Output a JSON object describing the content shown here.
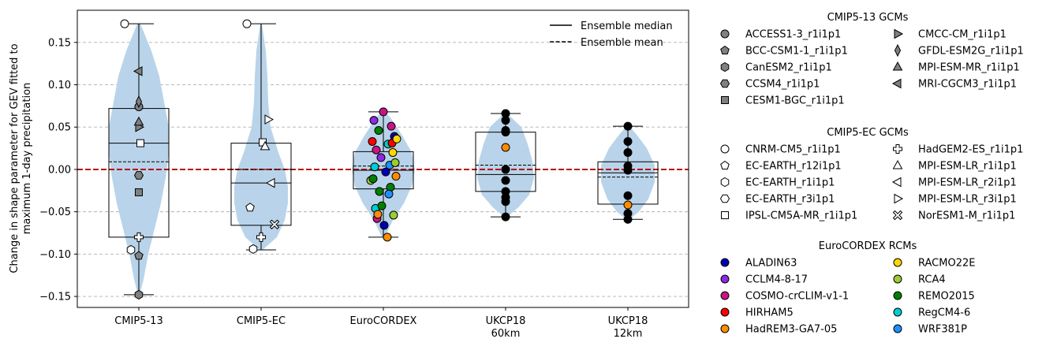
{
  "chart_data": {
    "type": "violin-box-scatter",
    "ylabel": "Change in shape parameter for GEV fitted to maximum 1-day precipitation",
    "ylim": [
      -0.163,
      0.188
    ],
    "yticks": [
      -0.15,
      -0.1,
      -0.05,
      0.0,
      0.05,
      0.1,
      0.15
    ],
    "ytick_labels": [
      "−0.15",
      "−0.10",
      "−0.05",
      "0.00",
      "0.05",
      "0.10",
      "0.15"
    ],
    "grid": "horizontal dashed",
    "zero_line_color": "#b30000",
    "violin_color": "#b9d4ea",
    "categories": [
      {
        "label": "CMIP5-13",
        "box": {
          "q1": -0.08,
          "median": 0.031,
          "q3": 0.072,
          "mean": 0.009,
          "whisker_low": -0.148,
          "whisker_high": 0.172
        },
        "violin": [
          [
            -0.15,
            0.005
          ],
          [
            -0.13,
            0.06
          ],
          [
            -0.1,
            0.12
          ],
          [
            -0.07,
            0.2
          ],
          [
            -0.04,
            0.28
          ],
          [
            -0.01,
            0.34
          ],
          [
            0.02,
            0.38
          ],
          [
            0.05,
            0.38
          ],
          [
            0.08,
            0.32
          ],
          [
            0.11,
            0.26
          ],
          [
            0.14,
            0.16
          ],
          [
            0.172,
            0.02
          ]
        ],
        "points": [
          {
            "model": "ACCESS1-3_r1i1p1",
            "y": 0.074
          },
          {
            "model": "BCC-CSM1-1_r1i1p1",
            "y": -0.102
          },
          {
            "model": "CanESM2_r1i1p1",
            "y": -0.148
          },
          {
            "model": "CCSM4_r1i1p1",
            "y": -0.007
          },
          {
            "model": "CESM1-BGC_r1i1p1",
            "y": -0.027
          },
          {
            "model": "CMCC-CM_r1i1p1",
            "y": 0.05
          },
          {
            "model": "GFDL-ESM2G_r1i1p1",
            "y": 0.08
          },
          {
            "model": "MPI-ESM-MR_r1i1p1",
            "y": 0.056
          },
          {
            "model": "MRI-CGCM3_r1i1p1",
            "y": 0.116
          },
          {
            "model": "CNRM-CM5_r1i1p1",
            "y": 0.172
          },
          {
            "model": "EC-EARTH_r1i1p1",
            "y": -0.095
          },
          {
            "model": "IPSL-CM5A-MR_r1i1p1",
            "y": 0.031
          },
          {
            "model": "HadGEM2-ES_r1i1p1",
            "y": -0.08
          }
        ]
      },
      {
        "label": "CMIP5-EC",
        "box": {
          "q1": -0.066,
          "median": -0.016,
          "q3": 0.031,
          "mean": 0.0,
          "whisker_low": -0.095,
          "whisker_high": 0.172
        },
        "violin": [
          [
            -0.095,
            0.02
          ],
          [
            -0.08,
            0.2
          ],
          [
            -0.06,
            0.3
          ],
          [
            -0.04,
            0.34
          ],
          [
            -0.02,
            0.34
          ],
          [
            0.0,
            0.3
          ],
          [
            0.02,
            0.22
          ],
          [
            0.05,
            0.12
          ],
          [
            0.08,
            0.09
          ],
          [
            0.11,
            0.08
          ],
          [
            0.14,
            0.06
          ],
          [
            0.172,
            0.01
          ]
        ],
        "points": [
          {
            "model": "CNRM-CM5_r1i1p1",
            "y": 0.172
          },
          {
            "model": "EC-EARTH_r12i1p1",
            "y": -0.045
          },
          {
            "model": "EC-EARTH_r1i1p1",
            "y": -0.094
          },
          {
            "model": "IPSL-CM5A-MR_r1i1p1",
            "y": 0.032
          },
          {
            "model": "HadGEM2-ES_r1i1p1",
            "y": -0.08
          },
          {
            "model": "MPI-ESM-LR_r1i1p1",
            "y": 0.027
          },
          {
            "model": "MPI-ESM-LR_r2i1p1",
            "y": -0.016
          },
          {
            "model": "MPI-ESM-LR_r3i1p1",
            "y": 0.059
          },
          {
            "model": "NorESM1-M_r1i1p1",
            "y": -0.065
          }
        ]
      },
      {
        "label": "EuroCORDEX",
        "box": {
          "q1": -0.023,
          "median": -0.001,
          "q3": 0.021,
          "mean": 0.004,
          "whisker_low": -0.08,
          "whisker_high": 0.068
        },
        "violin": [
          [
            -0.08,
            0.02
          ],
          [
            -0.06,
            0.12
          ],
          [
            -0.04,
            0.26
          ],
          [
            -0.02,
            0.36
          ],
          [
            0.0,
            0.4
          ],
          [
            0.02,
            0.36
          ],
          [
            0.04,
            0.24
          ],
          [
            0.06,
            0.1
          ],
          [
            0.068,
            0.02
          ]
        ],
        "points": [
          {
            "model": "COSMO-crCLIM-v1-1",
            "y": 0.068
          },
          {
            "model": "CCLM4-8-17",
            "y": 0.058
          },
          {
            "model": "COSMO-crCLIM-v1-1",
            "y": 0.051
          },
          {
            "model": "REMO2015",
            "y": 0.046
          },
          {
            "model": "ALADIN63",
            "y": 0.039
          },
          {
            "model": "HIRHAM5",
            "y": 0.033
          },
          {
            "model": "RegCM4-6",
            "y": 0.03
          },
          {
            "model": "COSMO-crCLIM-v1-1",
            "y": 0.023
          },
          {
            "model": "RACMO22E",
            "y": 0.02
          },
          {
            "model": "CCLM4-8-17",
            "y": 0.014
          },
          {
            "model": "WRF381P",
            "y": 0.005
          },
          {
            "model": "RegCM4-6",
            "y": 0.003
          },
          {
            "model": "ALADIN63",
            "y": -0.003
          },
          {
            "model": "HadREM3-GA7-05",
            "y": -0.008
          },
          {
            "model": "RCA4",
            "y": -0.013
          },
          {
            "model": "REMO2015",
            "y": -0.021
          },
          {
            "model": "REMO2015",
            "y": -0.026
          },
          {
            "model": "RCA4",
            "y": -0.054
          },
          {
            "model": "COSMO-crCLIM-v1-1",
            "y": -0.058
          },
          {
            "model": "HadREM3-GA7-05",
            "y": -0.08
          },
          {
            "model": "HIRHAM5",
            "y": 0.031
          },
          {
            "model": "REMO2015",
            "y": -0.011
          },
          {
            "model": "ALADIN63",
            "y": -0.066
          },
          {
            "model": "RCA4",
            "y": 0.008
          },
          {
            "model": "RegCM4-6",
            "y": -0.046
          },
          {
            "model": "WRF381P",
            "y": -0.029
          },
          {
            "model": "REMO2015",
            "y": -0.043
          },
          {
            "model": "RACMO22E",
            "y": 0.036
          },
          {
            "model": "HadREM3-GA7-05",
            "y": -0.053
          }
        ]
      },
      {
        "label": "UKCP18 60km",
        "label_lines": [
          "UKCP18",
          "60km"
        ],
        "box": {
          "q1": -0.026,
          "median": -0.006,
          "q3": 0.044,
          "mean": 0.005,
          "whisker_low": -0.056,
          "whisker_high": 0.066
        },
        "violin": [
          [
            -0.056,
            0.02
          ],
          [
            -0.045,
            0.16
          ],
          [
            -0.03,
            0.3
          ],
          [
            -0.01,
            0.36
          ],
          [
            0.01,
            0.34
          ],
          [
            0.03,
            0.28
          ],
          [
            0.05,
            0.2
          ],
          [
            0.066,
            0.02
          ]
        ],
        "points": [
          {
            "model": "",
            "y": 0.066
          },
          {
            "model": "",
            "y": 0.058
          },
          {
            "model": "",
            "y": 0.046
          },
          {
            "model": "",
            "y": 0.044
          },
          {
            "model": "HadREM3-GA7-05",
            "y": 0.026
          },
          {
            "model": "",
            "y": 0.0
          },
          {
            "model": "",
            "y": -0.013
          },
          {
            "model": "",
            "y": -0.026
          },
          {
            "model": "",
            "y": -0.033
          },
          {
            "model": "",
            "y": -0.038
          },
          {
            "model": "",
            "y": -0.056
          }
        ]
      },
      {
        "label": "UKCP18 12km",
        "label_lines": [
          "UKCP18",
          "12km"
        ],
        "box": {
          "q1": -0.041,
          "median": -0.004,
          "q3": 0.009,
          "mean": -0.009,
          "whisker_low": -0.059,
          "whisker_high": 0.051
        },
        "violin": [
          [
            -0.059,
            0.02
          ],
          [
            -0.05,
            0.14
          ],
          [
            -0.035,
            0.26
          ],
          [
            -0.015,
            0.34
          ],
          [
            0.005,
            0.34
          ],
          [
            0.025,
            0.24
          ],
          [
            0.04,
            0.12
          ],
          [
            0.051,
            0.02
          ]
        ],
        "points": [
          {
            "model": "",
            "y": 0.051
          },
          {
            "model": "",
            "y": 0.033
          },
          {
            "model": "",
            "y": 0.02
          },
          {
            "model": "",
            "y": 0.004
          },
          {
            "model": "",
            "y": -0.001
          },
          {
            "model": "",
            "y": -0.031
          },
          {
            "model": "HadREM3-GA7-05",
            "y": -0.042
          },
          {
            "model": "",
            "y": -0.052
          },
          {
            "model": "",
            "y": -0.059
          }
        ]
      }
    ],
    "box_legend": {
      "placement": "top-right",
      "median": "Ensemble median",
      "mean": "Ensemble mean"
    }
  },
  "legend": {
    "groups": [
      {
        "title": "CMIP5-13 GCMs",
        "items": [
          {
            "label": "ACCESS1-3_r1i1p1",
            "marker": "circle",
            "fill": "#808080"
          },
          {
            "label": "BCC-CSM1-1_r1i1p1",
            "marker": "pentagon",
            "fill": "#808080"
          },
          {
            "label": "CanESM2_r1i1p1",
            "marker": "hexagon",
            "fill": "#808080"
          },
          {
            "label": "CCSM4_r1i1p1",
            "marker": "hexagon2",
            "fill": "#808080"
          },
          {
            "label": "CESM1-BGC_r1i1p1",
            "marker": "square",
            "fill": "#808080"
          },
          {
            "label": "CMCC-CM_r1i1p1",
            "marker": "tri-right",
            "fill": "#808080"
          },
          {
            "label": "GFDL-ESM2G_r1i1p1",
            "marker": "thin-diamond",
            "fill": "#808080"
          },
          {
            "label": "MPI-ESM-MR_r1i1p1",
            "marker": "tri-up",
            "fill": "#808080"
          },
          {
            "label": "MRI-CGCM3_r1i1p1",
            "marker": "tri-left",
            "fill": "#808080"
          }
        ]
      },
      {
        "title": "CMIP5-EC GCMs",
        "items": [
          {
            "label": "CNRM-CM5_r1i1p1",
            "marker": "circle",
            "fill": "#ffffff"
          },
          {
            "label": "EC-EARTH_r12i1p1",
            "marker": "pentagon",
            "fill": "#ffffff"
          },
          {
            "label": "EC-EARTH_r1i1p1",
            "marker": "hexagon",
            "fill": "#ffffff"
          },
          {
            "label": "EC-EARTH_r3i1p1",
            "marker": "hexagon2",
            "fill": "#ffffff"
          },
          {
            "label": "IPSL-CM5A-MR_r1i1p1",
            "marker": "square",
            "fill": "#ffffff"
          },
          {
            "label": "HadGEM2-ES_r1i1p1",
            "marker": "plus",
            "fill": "#ffffff"
          },
          {
            "label": "MPI-ESM-LR_r1i1p1",
            "marker": "tri-up",
            "fill": "#ffffff"
          },
          {
            "label": "MPI-ESM-LR_r2i1p1",
            "marker": "tri-left",
            "fill": "#ffffff"
          },
          {
            "label": "MPI-ESM-LR_r3i1p1",
            "marker": "tri-right",
            "fill": "#ffffff"
          },
          {
            "label": "NorESM1-M_r1i1p1",
            "marker": "x",
            "fill": "#ffffff"
          }
        ]
      },
      {
        "title": "EuroCORDEX RCMs",
        "items": [
          {
            "label": "ALADIN63",
            "marker": "circle",
            "fill": "#0000b3"
          },
          {
            "label": "CCLM4-8-17",
            "marker": "circle",
            "fill": "#8a2be2"
          },
          {
            "label": "COSMO-crCLIM-v1-1",
            "marker": "circle",
            "fill": "#c71585"
          },
          {
            "label": "HIRHAM5",
            "marker": "circle",
            "fill": "#ff0000"
          },
          {
            "label": "HadREM3-GA7-05",
            "marker": "circle",
            "fill": "#ff8c00"
          },
          {
            "label": "RACMO22E",
            "marker": "circle",
            "fill": "#ffd700"
          },
          {
            "label": "RCA4",
            "marker": "circle",
            "fill": "#9acd32"
          },
          {
            "label": "REMO2015",
            "marker": "circle",
            "fill": "#008000"
          },
          {
            "label": "RegCM4-6",
            "marker": "circle",
            "fill": "#00ced1"
          },
          {
            "label": "WRF381P",
            "marker": "circle",
            "fill": "#1e90ff"
          }
        ]
      }
    ]
  }
}
